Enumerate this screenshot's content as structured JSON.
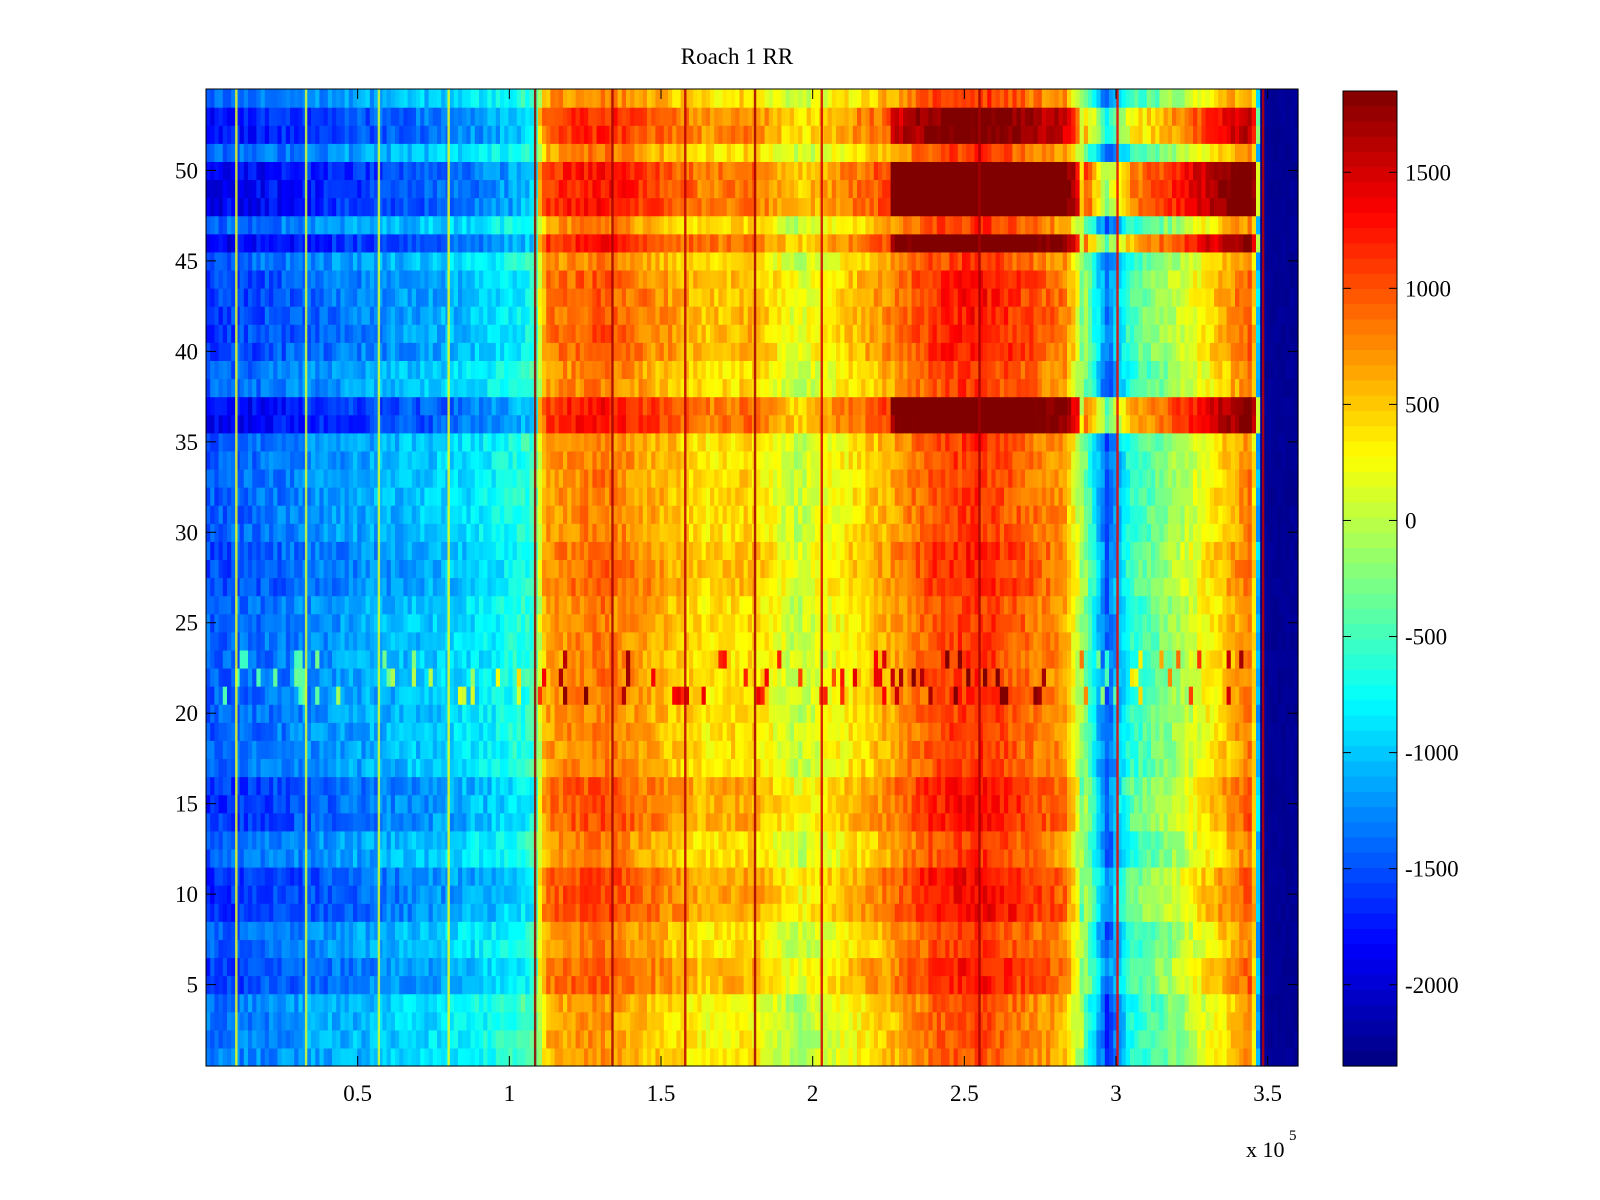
{
  "chart_data": {
    "type": "heatmap",
    "title": "Roach 1 RR",
    "xlabel": "",
    "ylabel": "",
    "x_multiplier_label": "x 10",
    "x_multiplier_exponent": "5",
    "xlim": [
      0,
      360000
    ],
    "ylim": [
      0.5,
      54.5
    ],
    "x_ticks": [
      50000,
      100000,
      150000,
      200000,
      250000,
      300000,
      350000
    ],
    "x_tick_labels": [
      "0.5",
      "1",
      "1.5",
      "2",
      "2.5",
      "3",
      "3.5"
    ],
    "y_ticks": [
      5,
      10,
      15,
      20,
      25,
      30,
      35,
      40,
      45,
      50
    ],
    "y_tick_labels": [
      "5",
      "10",
      "15",
      "20",
      "25",
      "30",
      "35",
      "40",
      "45",
      "50"
    ],
    "colormap": "jet",
    "colorbar": {
      "placement": "right",
      "clim": [
        -2350,
        1850
      ],
      "ticks": [
        1500,
        1000,
        500,
        0,
        -500,
        -1000,
        -1500,
        -2000
      ],
      "tick_labels": [
        "1500",
        "1000",
        "500",
        "0",
        "-500",
        "-1000",
        "-1500",
        "-2000"
      ]
    },
    "column_profile": {
      "x": [
        0,
        20000,
        50000,
        80000,
        95000,
        108000,
        112000,
        130000,
        145000,
        165000,
        180000,
        195000,
        210000,
        225000,
        240000,
        255000,
        270000,
        283000,
        290000,
        297000,
        305000,
        315000,
        330000,
        345000,
        348000,
        360000
      ],
      "value": [
        -1450,
        -1350,
        -1150,
        -950,
        -800,
        -550,
        650,
        850,
        650,
        350,
        450,
        0,
        300,
        600,
        1000,
        1150,
        900,
        700,
        -300,
        -1500,
        -600,
        -300,
        250,
        850,
        -2300,
        -2300
      ]
    },
    "row_offsets": [
      {
        "rows": [
          1,
          4
        ],
        "offset": -100
      },
      {
        "rows": [
          5,
          6
        ],
        "offset": 150
      },
      {
        "rows": [
          9,
          11
        ],
        "offset": 250
      },
      {
        "rows": [
          14,
          16
        ],
        "offset": 200
      },
      {
        "rows": [
          21,
          23
        ],
        "offset": 0,
        "noisy": true
      },
      {
        "rows": [
          27,
          29
        ],
        "offset": 100
      },
      {
        "rows": [
          36,
          37
        ],
        "offset": 450,
        "late_boost": 700
      },
      {
        "rows": [
          40,
          44
        ],
        "offset": 150
      },
      {
        "rows": [
          46,
          46
        ],
        "offset": 450,
        "late_boost": 700
      },
      {
        "rows": [
          48,
          50
        ],
        "offset": 450,
        "late_boost": 900
      },
      {
        "rows": [
          52,
          53
        ],
        "offset": 350,
        "late_boost": 500
      }
    ],
    "vertical_streaks": [
      {
        "x": 10000,
        "value": 200
      },
      {
        "x": 33000,
        "value": 100
      },
      {
        "x": 57000,
        "value": 100
      },
      {
        "x": 80000,
        "value": 200
      },
      {
        "x": 108500,
        "value": 1800
      },
      {
        "x": 134000,
        "value": 1700
      },
      {
        "x": 158000,
        "value": 1600
      },
      {
        "x": 181000,
        "value": 1700
      },
      {
        "x": 203000,
        "value": 1500
      },
      {
        "x": 255000,
        "value": 1700
      },
      {
        "x": 300500,
        "value": 1400
      },
      {
        "x": 348500,
        "value": 1600
      }
    ]
  }
}
